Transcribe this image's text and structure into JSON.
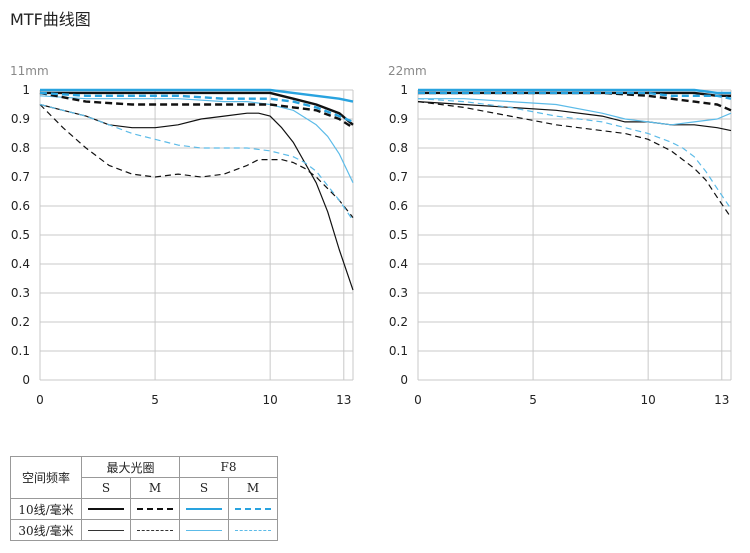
{
  "page": {
    "title": "MTF曲线图"
  },
  "legend": {
    "spatial_frequency": "空间频率",
    "max_aperture": "最大光圈",
    "f8": "F8",
    "s": "S",
    "m": "M",
    "lp10": "10线/毫米",
    "lp30": "30线/毫米"
  },
  "styles": {
    "max_aperture_color": "#111111",
    "f8_color": "#29a3df",
    "f8_30_color": "#5cbbe8"
  },
  "chart_data": [
    {
      "type": "line",
      "focal_label": "11mm",
      "xlim": [
        0,
        13.6
      ],
      "ylim": [
        0,
        1
      ],
      "x_ticks": [
        "0",
        "5",
        "10",
        "13"
      ],
      "x_tick_values": [
        0,
        5,
        10,
        13.2
      ],
      "y_ticks": [
        "0",
        "0.1",
        "0.2",
        "0.3",
        "0.4",
        "0.5",
        "0.6",
        "0.7",
        "0.8",
        "0.9",
        "1"
      ],
      "grid": true,
      "series": [
        {
          "aperture": "max",
          "freq": 10,
          "orient": "S",
          "x": [
            0,
            2,
            4,
            6,
            8,
            10,
            11,
            12,
            13,
            13.6
          ],
          "y": [
            0.99,
            0.99,
            0.99,
            0.99,
            0.99,
            0.99,
            0.97,
            0.95,
            0.92,
            0.88
          ]
        },
        {
          "aperture": "max",
          "freq": 10,
          "orient": "M",
          "x": [
            0,
            2,
            4,
            6,
            8,
            10,
            11,
            12,
            13,
            13.6
          ],
          "y": [
            0.99,
            0.96,
            0.95,
            0.95,
            0.95,
            0.95,
            0.94,
            0.93,
            0.9,
            0.87
          ]
        },
        {
          "aperture": "max",
          "freq": 30,
          "orient": "S",
          "x": [
            0,
            1,
            2,
            3,
            4,
            5,
            6,
            7,
            8,
            9,
            9.5,
            10,
            10.5,
            11,
            11.5,
            12,
            12.5,
            13,
            13.6
          ],
          "y": [
            0.95,
            0.93,
            0.91,
            0.88,
            0.87,
            0.87,
            0.88,
            0.9,
            0.91,
            0.92,
            0.92,
            0.91,
            0.87,
            0.82,
            0.75,
            0.68,
            0.58,
            0.45,
            0.31
          ]
        },
        {
          "aperture": "max",
          "freq": 30,
          "orient": "M",
          "x": [
            0,
            1,
            2,
            3,
            4,
            5,
            6,
            7,
            8,
            9,
            9.5,
            10,
            10.5,
            11,
            11.5,
            12,
            12.5,
            13,
            13.6
          ],
          "y": [
            0.95,
            0.87,
            0.8,
            0.74,
            0.71,
            0.7,
            0.71,
            0.7,
            0.71,
            0.74,
            0.76,
            0.76,
            0.76,
            0.75,
            0.73,
            0.7,
            0.66,
            0.62,
            0.56
          ]
        },
        {
          "aperture": "f8",
          "freq": 10,
          "orient": "S",
          "x": [
            0,
            2,
            4,
            6,
            8,
            10,
            11,
            12,
            13,
            13.6
          ],
          "y": [
            1.0,
            1.0,
            1.0,
            1.0,
            1.0,
            1.0,
            0.99,
            0.98,
            0.97,
            0.96
          ]
        },
        {
          "aperture": "f8",
          "freq": 10,
          "orient": "M",
          "x": [
            0,
            2,
            4,
            6,
            8,
            10,
            11,
            12,
            13,
            13.6
          ],
          "y": [
            0.99,
            0.98,
            0.98,
            0.98,
            0.97,
            0.97,
            0.96,
            0.94,
            0.91,
            0.89
          ]
        },
        {
          "aperture": "f8",
          "freq": 30,
          "orient": "S",
          "x": [
            0,
            2,
            4,
            6,
            8,
            9,
            10,
            11,
            12,
            12.5,
            13,
            13.6
          ],
          "y": [
            0.98,
            0.97,
            0.97,
            0.97,
            0.96,
            0.96,
            0.95,
            0.93,
            0.88,
            0.84,
            0.78,
            0.68
          ]
        },
        {
          "aperture": "f8",
          "freq": 30,
          "orient": "M",
          "x": [
            0,
            1,
            2,
            3,
            4,
            5,
            6,
            7,
            8,
            9,
            10,
            10.5,
            11,
            11.5,
            12,
            12.5,
            13,
            13.6
          ],
          "y": [
            0.95,
            0.93,
            0.91,
            0.88,
            0.85,
            0.83,
            0.81,
            0.8,
            0.8,
            0.8,
            0.79,
            0.78,
            0.77,
            0.75,
            0.72,
            0.67,
            0.62,
            0.55
          ]
        }
      ]
    },
    {
      "type": "line",
      "focal_label": "22mm",
      "xlim": [
        0,
        13.6
      ],
      "ylim": [
        0,
        1
      ],
      "x_ticks": [
        "0",
        "5",
        "10",
        "13"
      ],
      "x_tick_values": [
        0,
        5,
        10,
        13.2
      ],
      "y_ticks": [
        "0",
        "0.1",
        "0.2",
        "0.3",
        "0.4",
        "0.5",
        "0.6",
        "0.7",
        "0.8",
        "0.9",
        "1"
      ],
      "grid": true,
      "series": [
        {
          "aperture": "max",
          "freq": 10,
          "orient": "S",
          "x": [
            0,
            2,
            4,
            6,
            8,
            10,
            11,
            12,
            13,
            13.6
          ],
          "y": [
            0.99,
            0.99,
            0.99,
            0.99,
            0.99,
            0.99,
            0.99,
            0.99,
            0.98,
            0.98
          ]
        },
        {
          "aperture": "max",
          "freq": 10,
          "orient": "M",
          "x": [
            0,
            2,
            4,
            6,
            8,
            10,
            11,
            12,
            13,
            13.6
          ],
          "y": [
            0.99,
            0.99,
            0.99,
            0.99,
            0.99,
            0.98,
            0.97,
            0.96,
            0.95,
            0.93
          ]
        },
        {
          "aperture": "max",
          "freq": 30,
          "orient": "S",
          "x": [
            0,
            2,
            4,
            6,
            8,
            9,
            10,
            11,
            12,
            13,
            13.6
          ],
          "y": [
            0.96,
            0.95,
            0.94,
            0.93,
            0.91,
            0.89,
            0.89,
            0.88,
            0.88,
            0.87,
            0.86
          ]
        },
        {
          "aperture": "max",
          "freq": 30,
          "orient": "M",
          "x": [
            0,
            2,
            4,
            6,
            8,
            9,
            10,
            11,
            11.5,
            12,
            12.5,
            13,
            13.6
          ],
          "y": [
            0.96,
            0.94,
            0.91,
            0.88,
            0.86,
            0.85,
            0.83,
            0.79,
            0.76,
            0.73,
            0.69,
            0.63,
            0.56
          ]
        },
        {
          "aperture": "f8",
          "freq": 10,
          "orient": "S",
          "x": [
            0,
            2,
            4,
            6,
            8,
            10,
            11,
            12,
            13,
            13.6
          ],
          "y": [
            1.0,
            1.0,
            1.0,
            1.0,
            1.0,
            1.0,
            1.0,
            1.0,
            0.99,
            0.99
          ]
        },
        {
          "aperture": "f8",
          "freq": 10,
          "orient": "M",
          "x": [
            0,
            2,
            4,
            6,
            8,
            10,
            11,
            12,
            13,
            13.6
          ],
          "y": [
            0.99,
            0.99,
            0.99,
            0.99,
            0.99,
            0.99,
            0.98,
            0.98,
            0.98,
            0.97
          ]
        },
        {
          "aperture": "f8",
          "freq": 30,
          "orient": "S",
          "x": [
            0,
            2,
            4,
            6,
            8,
            9,
            10,
            11,
            12,
            13,
            13.6
          ],
          "y": [
            0.97,
            0.97,
            0.96,
            0.95,
            0.92,
            0.9,
            0.89,
            0.88,
            0.89,
            0.9,
            0.92
          ]
        },
        {
          "aperture": "f8",
          "freq": 30,
          "orient": "M",
          "x": [
            0,
            2,
            4,
            6,
            8,
            9,
            10,
            11,
            11.5,
            12,
            12.5,
            13,
            13.6
          ],
          "y": [
            0.97,
            0.96,
            0.94,
            0.91,
            0.89,
            0.87,
            0.85,
            0.82,
            0.8,
            0.77,
            0.72,
            0.66,
            0.59
          ]
        }
      ]
    }
  ]
}
